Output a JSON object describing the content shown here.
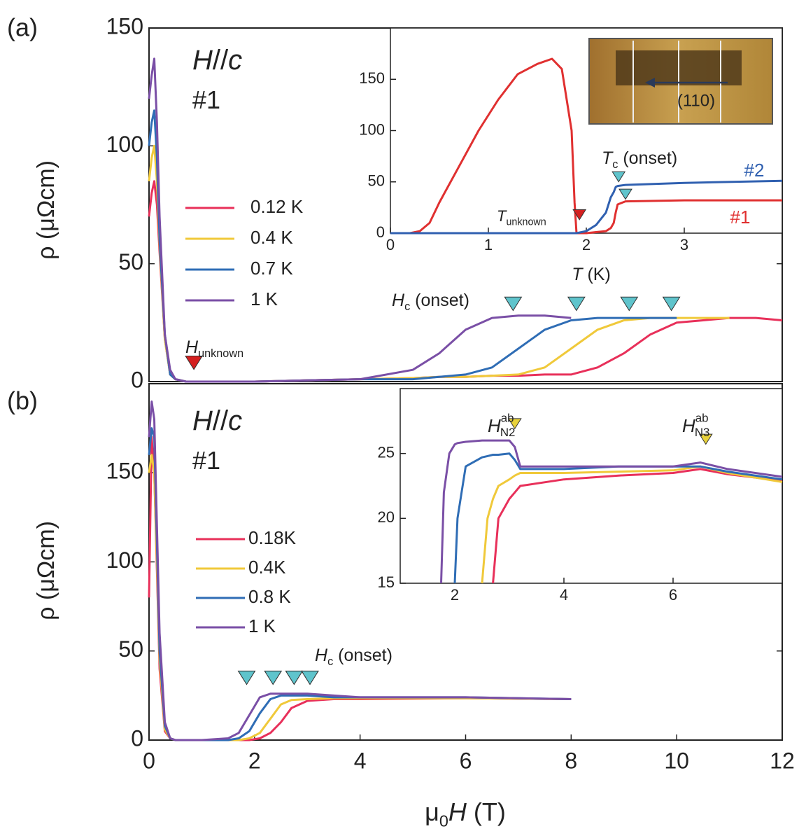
{
  "chart_data": [
    {
      "type": "line",
      "panel_label": "(a)",
      "y_label": "ρ (μΩcm)",
      "xlim": [
        0,
        12
      ],
      "ylim": [
        0,
        150
      ],
      "yticks": [
        0,
        50,
        100,
        150
      ],
      "x": [
        0,
        0.05,
        0.1,
        0.15,
        0.2,
        0.3,
        0.4,
        0.5,
        0.7,
        1,
        2,
        3,
        4,
        5,
        5.5,
        6,
        6.5,
        7,
        7.5,
        8,
        8.5,
        9,
        9.5,
        10,
        10.5,
        11,
        11.5,
        12
      ],
      "series": [
        {
          "name": "0.12 K",
          "color": "#e8305a",
          "values": [
            70,
            80,
            85,
            75,
            55,
            18,
            3,
            1,
            0,
            0,
            0,
            0.5,
            1,
            1.5,
            2,
            2,
            2.5,
            2.5,
            3,
            3,
            6,
            12,
            20,
            25,
            26,
            27,
            27,
            26
          ]
        },
        {
          "name": "0.4 K",
          "color": "#f0c93a",
          "values": [
            85,
            95,
            100,
            85,
            58,
            18,
            3,
            1,
            0,
            0,
            0,
            0.5,
            1,
            1.5,
            2,
            2,
            2.5,
            3,
            6,
            14,
            22,
            26,
            27,
            27,
            27,
            27,
            null,
            null
          ]
        },
        {
          "name": "0.7 K",
          "color": "#2f6db5",
          "values": [
            100,
            110,
            115,
            95,
            60,
            20,
            3,
            1,
            0,
            0,
            0,
            0.5,
            1,
            1,
            2,
            3,
            6,
            14,
            22,
            26,
            27,
            27,
            27,
            27,
            null,
            null,
            null,
            null
          ]
        },
        {
          "name": "1 K",
          "color": "#7a4fa6",
          "values": [
            120,
            130,
            137,
            110,
            70,
            20,
            5,
            1,
            0,
            0,
            0,
            0.5,
            1,
            5,
            12,
            22,
            27,
            28,
            28,
            27,
            null,
            null,
            null,
            null,
            null,
            null,
            null,
            null
          ]
        }
      ],
      "markers": [
        {
          "x": 6.9,
          "y": 33,
          "color": "#5fc4cc"
        },
        {
          "x": 8.1,
          "y": 33,
          "color": "#5fc4cc"
        },
        {
          "x": 9.1,
          "y": 33,
          "color": "#5fc4cc"
        },
        {
          "x": 9.9,
          "y": 33,
          "color": "#5fc4cc"
        },
        {
          "x": 0.85,
          "y": 8,
          "color": "#d42020"
        }
      ],
      "annotations": [
        {
          "parts": [
            {
              "text": "H",
              "italic": true
            },
            {
              "text": "//"
            },
            {
              "text": "c",
              "italic": true
            }
          ]
        },
        {
          "parts": [
            {
              "text": "#1"
            }
          ]
        },
        {
          "parts": [
            {
              "text": "H",
              "italic": true
            },
            {
              "text": "c",
              "sub": true
            },
            {
              "text": " (onset)"
            }
          ]
        },
        {
          "parts": [
            {
              "text": "H",
              "italic": true
            },
            {
              "text": "unknown",
              "sub": true
            }
          ]
        }
      ]
    },
    {
      "type": "line",
      "inset": true,
      "x_label": {
        "parts": [
          {
            "text": "T",
            "italic": true
          },
          {
            "text": " (K)"
          }
        ]
      },
      "xlim": [
        0,
        4
      ],
      "xticks": [
        0,
        1,
        2,
        3
      ],
      "ylim": [
        0,
        200
      ],
      "yticks": [
        0,
        50,
        100,
        150
      ],
      "x": [
        0,
        0.2,
        0.3,
        0.4,
        0.5,
        0.7,
        0.9,
        1.1,
        1.3,
        1.5,
        1.65,
        1.75,
        1.85,
        1.88,
        1.9,
        2.0,
        2.1,
        2.2,
        2.25,
        2.28,
        2.3,
        2.32,
        2.4,
        3,
        4
      ],
      "series": [
        {
          "name": "#1",
          "color": "#e03030",
          "values": [
            0,
            0,
            2,
            10,
            30,
            65,
            100,
            130,
            155,
            165,
            170,
            160,
            100,
            30,
            0,
            0,
            1,
            2,
            5,
            10,
            20,
            28,
            31,
            32,
            32
          ]
        },
        {
          "name": "#2",
          "color": "#3060b0",
          "values": [
            0,
            0,
            0,
            0,
            0,
            0,
            0,
            0,
            0,
            0,
            0,
            0,
            0,
            0,
            0,
            2,
            8,
            20,
            35,
            40,
            45,
            46,
            47,
            49,
            51
          ]
        }
      ],
      "markers": [
        {
          "x": 2.33,
          "y": 55,
          "color": "#5fc4cc"
        },
        {
          "x": 2.4,
          "y": 38,
          "color": "#5fc4cc"
        },
        {
          "x": 1.93,
          "y": 18,
          "color": "#d42020"
        }
      ],
      "annotations": [
        {
          "parts": [
            {
              "text": "T",
              "italic": true
            },
            {
              "text": "c",
              "sub": true
            },
            {
              "text": " (onset)"
            }
          ]
        },
        {
          "parts": [
            {
              "text": "T",
              "italic": true
            },
            {
              "text": "unknown",
              "sub": true
            }
          ]
        }
      ],
      "photo_label": "(110)"
    },
    {
      "type": "line",
      "panel_label": "(b)",
      "y_label": "ρ (μΩcm)",
      "x_label": {
        "parts": [
          {
            "text": "μ"
          },
          {
            "text": "0",
            "sub": true
          },
          {
            "text": "H",
            "italic": true
          },
          {
            "text": " (T)"
          }
        ]
      },
      "xlim": [
        0,
        12
      ],
      "xticks": [
        0,
        2,
        4,
        6,
        8,
        10,
        12
      ],
      "ylim": [
        0,
        200
      ],
      "yticks": [
        0,
        50,
        100,
        150
      ],
      "x": [
        0,
        0.05,
        0.1,
        0.15,
        0.2,
        0.3,
        0.4,
        0.5,
        1,
        1.5,
        1.7,
        1.9,
        2.1,
        2.3,
        2.5,
        2.7,
        3,
        3.5,
        4,
        6,
        8
      ],
      "series": [
        {
          "name": "0.18K",
          "color": "#e8305a",
          "values": [
            80,
            170,
            150,
            95,
            40,
            5,
            1,
            0,
            0,
            0,
            0,
            0,
            1,
            4,
            10,
            18,
            22,
            23,
            23,
            23.5,
            23
          ]
        },
        {
          "name": "0.4K",
          "color": "#f0c93a",
          "values": [
            150,
            160,
            150,
            100,
            45,
            6,
            1,
            0,
            0,
            0,
            0,
            1,
            4,
            12,
            20,
            22.5,
            23,
            23.5,
            23.5,
            23.5,
            23
          ]
        },
        {
          "name": "0.8 K",
          "color": "#2f6db5",
          "values": [
            160,
            175,
            170,
            110,
            50,
            8,
            1,
            0,
            0,
            0,
            1,
            5,
            15,
            23,
            25,
            25,
            25,
            24,
            24,
            24,
            23
          ]
        },
        {
          "name": "1 K",
          "color": "#7a4fa6",
          "values": [
            170,
            190,
            180,
            120,
            60,
            10,
            1,
            0,
            0,
            1,
            4,
            14,
            24,
            26,
            26,
            26,
            26,
            25,
            24,
            24,
            23
          ]
        }
      ],
      "markers": [
        {
          "x": 1.85,
          "y": 35,
          "color": "#5fc4cc"
        },
        {
          "x": 2.35,
          "y": 35,
          "color": "#5fc4cc"
        },
        {
          "x": 2.75,
          "y": 35,
          "color": "#5fc4cc"
        },
        {
          "x": 3.05,
          "y": 35,
          "color": "#5fc4cc"
        }
      ],
      "annotations": [
        {
          "parts": [
            {
              "text": "H",
              "italic": true
            },
            {
              "text": "//"
            },
            {
              "text": "c",
              "italic": true
            }
          ]
        },
        {
          "parts": [
            {
              "text": "#1"
            }
          ]
        },
        {
          "parts": [
            {
              "text": "H",
              "italic": true
            },
            {
              "text": "c",
              "sub": true
            },
            {
              "text": " (onset)"
            }
          ]
        }
      ]
    },
    {
      "type": "line",
      "inset": true,
      "xlim": [
        1,
        8
      ],
      "xticks": [
        2,
        4,
        6
      ],
      "ylim": [
        15,
        30
      ],
      "yticks": [
        15,
        20,
        25
      ],
      "x": [
        1.75,
        1.8,
        1.9,
        2.0,
        2.05,
        2.2,
        2.5,
        2.6,
        2.7,
        2.8,
        3.0,
        3.1,
        3.2,
        4,
        5,
        6,
        6.5,
        7,
        8
      ],
      "series": [
        {
          "color": "#e8305a",
          "values": [
            null,
            null,
            null,
            null,
            null,
            null,
            null,
            null,
            15,
            20,
            21.5,
            22,
            22.5,
            23,
            23.3,
            23.5,
            23.8,
            23.4,
            22.9
          ]
        },
        {
          "color": "#f0c93a",
          "values": [
            null,
            null,
            null,
            null,
            null,
            null,
            15,
            20,
            21.5,
            22.5,
            23,
            23.3,
            23.5,
            23.5,
            23.6,
            23.7,
            24,
            23.5,
            22.8
          ]
        },
        {
          "color": "#2f6db5",
          "values": [
            null,
            null,
            null,
            15,
            20,
            24,
            24.7,
            24.8,
            24.9,
            24.9,
            25,
            24.5,
            23.8,
            23.8,
            24,
            24,
            24,
            23.6,
            23
          ]
        },
        {
          "color": "#7a4fa6",
          "values": [
            15,
            22,
            25,
            25.7,
            25.8,
            25.9,
            26,
            26,
            26,
            26,
            26,
            25.5,
            24,
            24,
            24,
            24,
            24.3,
            23.8,
            23.2
          ]
        }
      ],
      "markers": [
        {
          "x": 3.1,
          "y": 27.3,
          "color": "#e8d23a"
        },
        {
          "x": 6.6,
          "y": 26.1,
          "color": "#e8d23a"
        }
      ],
      "annotations": [
        {
          "parts": [
            {
              "text": "H",
              "italic": true
            },
            {
              "text": "ab",
              "sup": true
            },
            {
              "text": "N2",
              "sub": true
            }
          ]
        },
        {
          "parts": [
            {
              "text": "H",
              "italic": true
            },
            {
              "text": "ab",
              "sup": true
            },
            {
              "text": "N3",
              "sub": true
            }
          ]
        }
      ]
    }
  ]
}
